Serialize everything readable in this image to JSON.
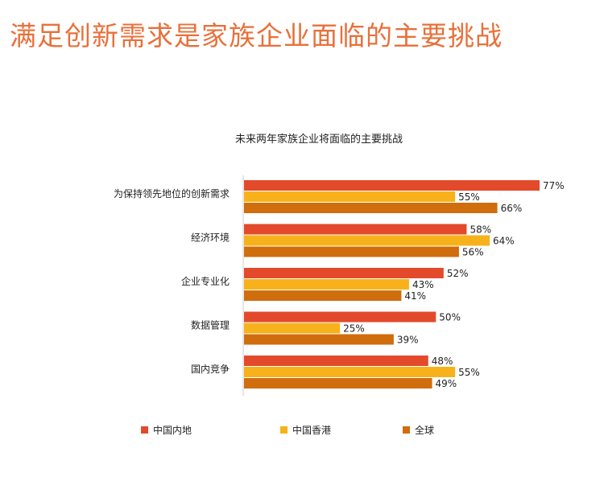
{
  "page_title": "满足创新需求是家族企业面临的主要挑战",
  "colors": {
    "title": "#e8703a",
    "china_mainland": "#e34a2b",
    "hong_kong": "#f7b21b",
    "global": "#d06d0c",
    "axis": "#cccccc"
  },
  "chart_data": {
    "type": "bar",
    "orientation": "horizontal",
    "title": "未来两年家族企业将面临的主要挑战",
    "categories": [
      "为保持领先地位的创新需求",
      "经济环境",
      "企业专业化",
      "数据管理",
      "国内竞争"
    ],
    "series": [
      {
        "name": "中国内地",
        "color": "#e34a2b",
        "values": [
          77,
          58,
          52,
          50,
          48
        ],
        "labels": [
          "77%",
          "58%",
          "52%",
          "50%",
          "48%"
        ]
      },
      {
        "name": "中国香港",
        "color": "#f7b21b",
        "values": [
          55,
          64,
          43,
          25,
          55
        ],
        "labels": [
          "55%",
          "64%",
          "43%",
          "25%",
          "55%"
        ]
      },
      {
        "name": "全球",
        "color": "#d06d0c",
        "values": [
          66,
          56,
          41,
          39,
          49
        ],
        "labels": [
          "66%",
          "56%",
          "41%",
          "39%",
          "49%"
        ]
      }
    ],
    "xlim": [
      0,
      77
    ],
    "unit": "%",
    "legend_position": "bottom",
    "grid": false
  }
}
